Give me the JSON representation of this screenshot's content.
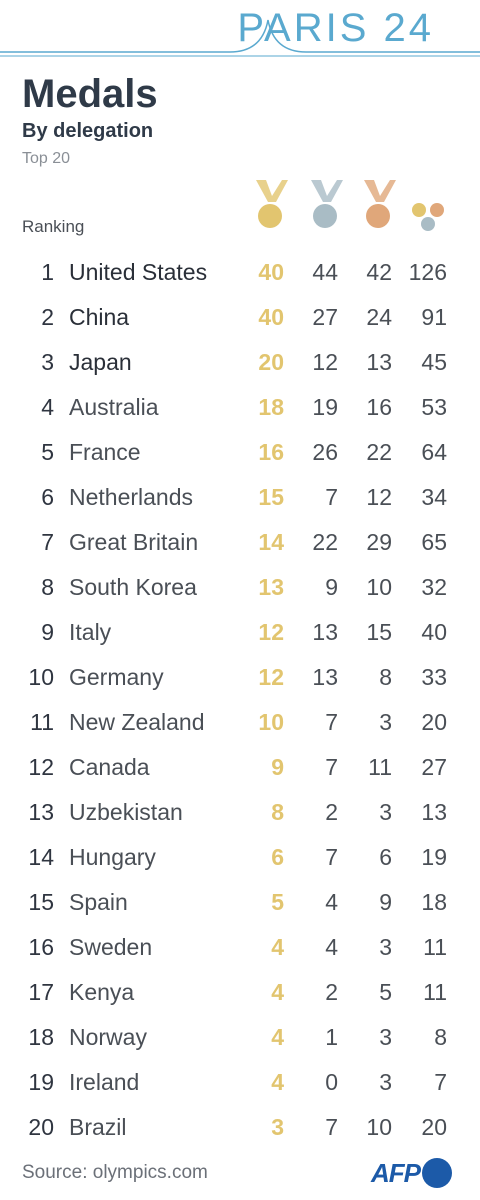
{
  "header": {
    "brand": "PARIS 24",
    "title": "Medals",
    "subtitle": "By delegation",
    "note": "Top 20"
  },
  "table": {
    "ranking_label": "Ranking",
    "columns": [
      "gold-medal-icon",
      "silver-medal-icon",
      "bronze-medal-icon",
      "total-medals-icon"
    ],
    "colors": {
      "gold": "#e2c56f",
      "silver": "#a9bcc5",
      "bronze": "#e0a77a",
      "accent": "#5aa9cf"
    },
    "rows": [
      {
        "rank": "1",
        "country": "United States",
        "gold": "40",
        "silver": "44",
        "bronze": "42",
        "total": "126"
      },
      {
        "rank": "2",
        "country": "China",
        "gold": "40",
        "silver": "27",
        "bronze": "24",
        "total": "91"
      },
      {
        "rank": "3",
        "country": "Japan",
        "gold": "20",
        "silver": "12",
        "bronze": "13",
        "total": "45"
      },
      {
        "rank": "4",
        "country": "Australia",
        "gold": "18",
        "silver": "19",
        "bronze": "16",
        "total": "53"
      },
      {
        "rank": "5",
        "country": "France",
        "gold": "16",
        "silver": "26",
        "bronze": "22",
        "total": "64"
      },
      {
        "rank": "6",
        "country": "Netherlands",
        "gold": "15",
        "silver": "7",
        "bronze": "12",
        "total": "34"
      },
      {
        "rank": "7",
        "country": "Great Britain",
        "gold": "14",
        "silver": "22",
        "bronze": "29",
        "total": "65"
      },
      {
        "rank": "8",
        "country": "South Korea",
        "gold": "13",
        "silver": "9",
        "bronze": "10",
        "total": "32"
      },
      {
        "rank": "9",
        "country": "Italy",
        "gold": "12",
        "silver": "13",
        "bronze": "15",
        "total": "40"
      },
      {
        "rank": "10",
        "country": "Germany",
        "gold": "12",
        "silver": "13",
        "bronze": "8",
        "total": "33"
      },
      {
        "rank": "11",
        "country": "New Zealand",
        "gold": "10",
        "silver": "7",
        "bronze": "3",
        "total": "20"
      },
      {
        "rank": "12",
        "country": "Canada",
        "gold": "9",
        "silver": "7",
        "bronze": "11",
        "total": "27"
      },
      {
        "rank": "13",
        "country": "Uzbekistan",
        "gold": "8",
        "silver": "2",
        "bronze": "3",
        "total": "13"
      },
      {
        "rank": "14",
        "country": "Hungary",
        "gold": "6",
        "silver": "7",
        "bronze": "6",
        "total": "19"
      },
      {
        "rank": "15",
        "country": "Spain",
        "gold": "5",
        "silver": "4",
        "bronze": "9",
        "total": "18"
      },
      {
        "rank": "16",
        "country": "Sweden",
        "gold": "4",
        "silver": "4",
        "bronze": "3",
        "total": "11"
      },
      {
        "rank": "17",
        "country": "Kenya",
        "gold": "4",
        "silver": "2",
        "bronze": "5",
        "total": "11"
      },
      {
        "rank": "18",
        "country": "Norway",
        "gold": "4",
        "silver": "1",
        "bronze": "3",
        "total": "8"
      },
      {
        "rank": "19",
        "country": "Ireland",
        "gold": "4",
        "silver": "0",
        "bronze": "3",
        "total": "7"
      },
      {
        "rank": "20",
        "country": "Brazil",
        "gold": "3",
        "silver": "7",
        "bronze": "10",
        "total": "20"
      }
    ]
  },
  "footer": {
    "source": "Source: olympics.com",
    "logo_text": "AFP"
  }
}
